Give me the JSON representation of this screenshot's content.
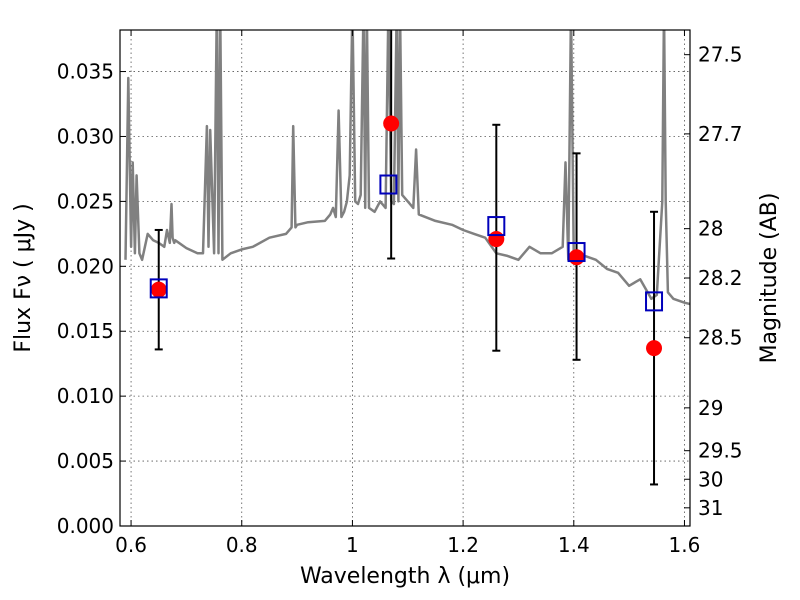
{
  "chart_data": {
    "type": "line",
    "xlabel": "Wavelength  λ (μm)",
    "ylabel": "Flux  Fν  ( μJy )",
    "ylabel_right": "Magnitude (AB)",
    "xlim": [
      0.58,
      1.61
    ],
    "ylim": [
      0.0,
      0.0382
    ],
    "grid": true,
    "x_ticks": [
      0.6,
      0.8,
      1.0,
      1.2,
      1.4,
      1.6
    ],
    "x_tick_labels": [
      "0.6",
      "0.8",
      "1",
      "1.2",
      "1.4",
      "1.6"
    ],
    "y_ticks": [
      0.0,
      0.005,
      0.01,
      0.015,
      0.02,
      0.025,
      0.03,
      0.035
    ],
    "y_tick_labels": [
      "0.000",
      "0.005",
      "0.010",
      "0.015",
      "0.020",
      "0.025",
      "0.030",
      "0.035"
    ],
    "right_ticks": [
      {
        "label": "27.5",
        "flux": 0.0363
      },
      {
        "label": "27.7",
        "flux": 0.0302
      },
      {
        "label": "28",
        "flux": 0.0229
      },
      {
        "label": "28.2",
        "flux": 0.0191
      },
      {
        "label": "28.5",
        "flux": 0.0145
      },
      {
        "label": "29",
        "flux": 0.0091
      },
      {
        "label": "29.5",
        "flux": 0.0058
      },
      {
        "label": "30",
        "flux": 0.0036
      },
      {
        "label": "31",
        "flux": 0.0014
      }
    ],
    "colors": {
      "model": "#808080",
      "observed": "#ff0000",
      "model_photometry": "#0000bb",
      "errorbar": "#000000"
    },
    "series": [
      {
        "type": "line",
        "x": [
          0.59,
          0.595,
          0.6,
          0.603,
          0.607,
          0.61,
          0.615,
          0.62,
          0.625,
          0.63,
          0.64,
          0.65,
          0.66,
          0.665,
          0.67,
          0.673,
          0.675,
          0.678,
          0.68,
          0.7,
          0.72,
          0.73,
          0.737,
          0.74,
          0.743,
          0.75,
          0.755,
          0.758,
          0.761,
          0.765,
          0.78,
          0.8,
          0.82,
          0.85,
          0.88,
          0.89,
          0.893,
          0.897,
          0.9,
          0.92,
          0.95,
          0.96,
          0.965,
          0.97,
          0.975,
          0.98,
          0.985,
          0.99,
          0.995,
          1.0,
          1.005,
          1.01,
          1.015,
          1.02,
          1.023,
          1.026,
          1.03,
          1.04,
          1.05,
          1.06,
          1.065,
          1.07,
          1.075,
          1.08,
          1.083,
          1.086,
          1.09,
          1.1,
          1.11,
          1.115,
          1.12,
          1.15,
          1.18,
          1.2,
          1.22,
          1.24,
          1.26,
          1.28,
          1.3,
          1.32,
          1.34,
          1.36,
          1.38,
          1.385,
          1.39,
          1.395,
          1.4,
          1.42,
          1.44,
          1.46,
          1.48,
          1.5,
          1.52,
          1.54,
          1.55,
          1.56,
          1.563,
          1.566,
          1.57,
          1.58,
          1.6,
          1.61
        ],
        "y": [
          0.0205,
          0.0345,
          0.0215,
          0.028,
          0.021,
          0.027,
          0.021,
          0.0205,
          0.0215,
          0.0225,
          0.022,
          0.0218,
          0.0215,
          0.0228,
          0.0218,
          0.0248,
          0.0222,
          0.0218,
          0.022,
          0.0214,
          0.021,
          0.021,
          0.0308,
          0.0215,
          0.0305,
          0.021,
          0.04,
          0.021,
          0.04,
          0.0205,
          0.021,
          0.0213,
          0.0215,
          0.0222,
          0.0225,
          0.023,
          0.0308,
          0.023,
          0.0232,
          0.0234,
          0.0235,
          0.024,
          0.0245,
          0.0238,
          0.032,
          0.0238,
          0.0242,
          0.025,
          0.027,
          0.04,
          0.025,
          0.0248,
          0.0255,
          0.04,
          0.0245,
          0.04,
          0.0245,
          0.0242,
          0.025,
          0.0245,
          0.04,
          0.025,
          0.0248,
          0.04,
          0.025,
          0.04,
          0.0255,
          0.025,
          0.0245,
          0.029,
          0.024,
          0.0235,
          0.0232,
          0.0228,
          0.0225,
          0.0222,
          0.021,
          0.0208,
          0.0205,
          0.0215,
          0.021,
          0.021,
          0.0215,
          0.028,
          0.0205,
          0.04,
          0.0205,
          0.0208,
          0.0205,
          0.0198,
          0.0195,
          0.0185,
          0.019,
          0.0175,
          0.0178,
          0.025,
          0.04,
          0.025,
          0.018,
          0.0175,
          0.0172,
          0.0171
        ]
      },
      {
        "type": "errorbar",
        "x": [
          0.65,
          1.07,
          1.26,
          1.405,
          1.545
        ],
        "y": [
          0.0182,
          0.031,
          0.0221,
          0.0207,
          0.0137
        ],
        "yerr_low": [
          0.0046,
          0.0104,
          0.0086,
          0.0079,
          0.0105
        ],
        "yerr_high": [
          0.0046,
          0.0104,
          0.0088,
          0.008,
          0.0105
        ]
      },
      {
        "type": "scatter",
        "marker": "square",
        "x": [
          0.65,
          1.065,
          1.26,
          1.405,
          1.545
        ],
        "y": [
          0.0183,
          0.0263,
          0.0231,
          0.0211,
          0.0173
        ]
      }
    ]
  }
}
